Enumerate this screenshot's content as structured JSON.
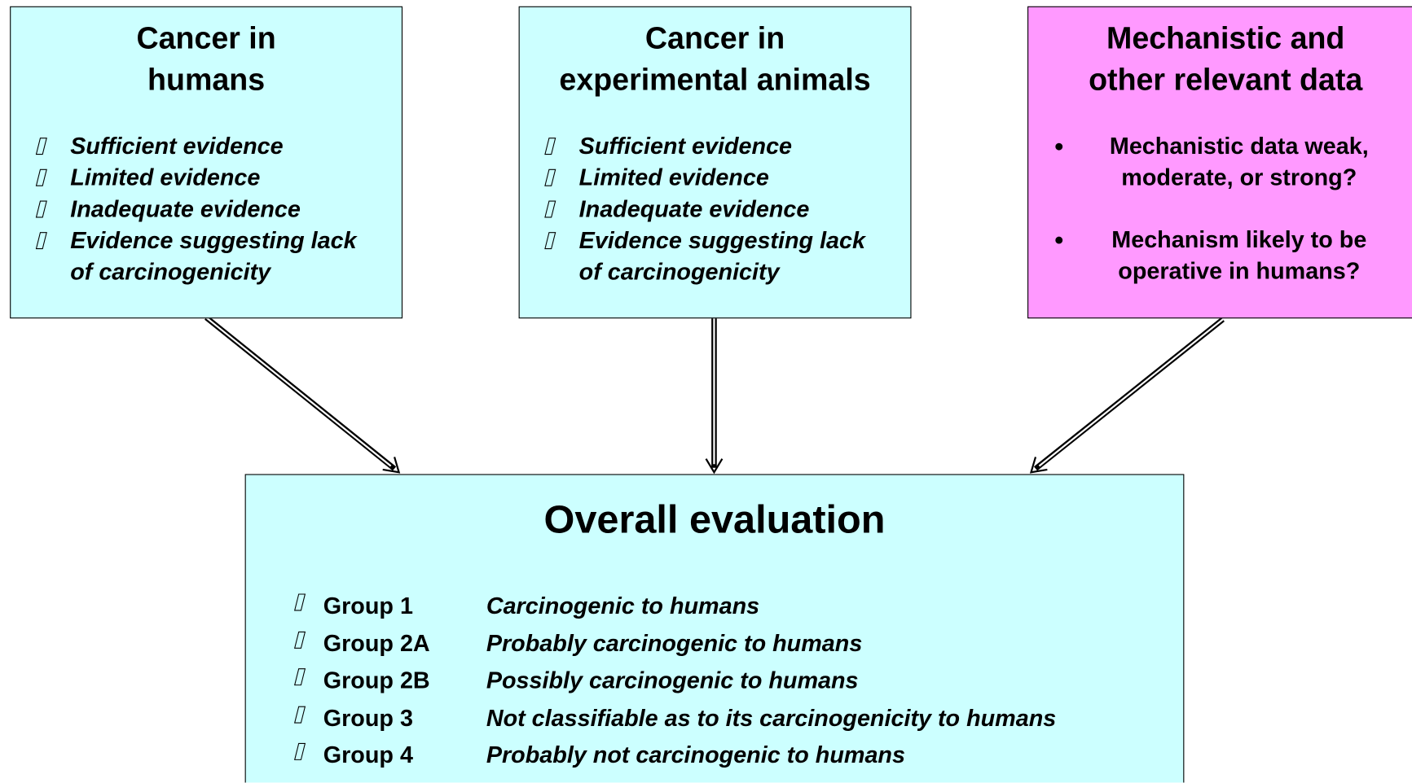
{
  "nodes": [
    {
      "title": "Cancer in\nhumans",
      "items": [
        "Sufficient evidence",
        "Limited evidence",
        "Inadequate evidence",
        "Evidence suggesting lack\nof carcinogenicity"
      ]
    },
    {
      "title": "Cancer in\nexperimental animals",
      "items": [
        "Sufficient evidence",
        "Limited evidence",
        "Inadequate evidence",
        "Evidence suggesting lack\nof carcinogenicity"
      ]
    },
    {
      "title": "Mechanistic and\nother relevant data",
      "items": [
        "Mechanistic data weak,\nmoderate, or strong?",
        "Mechanism likely to be\noperative in humans?"
      ]
    }
  ],
  "overall": {
    "title": "Overall evaluation",
    "groups": [
      {
        "group": "Group 1",
        "description": "Carcinogenic to humans"
      },
      {
        "group": "Group 2A",
        "description": "Probably carcinogenic to humans"
      },
      {
        "group": "Group 2B",
        "description": "Possibly carcinogenic to humans"
      },
      {
        "group": "Group 3",
        "description": "Not classifiable as to its carcinogenicity to humans"
      },
      {
        "group": "Group 4",
        "description": "Probably not carcinogenic to humans"
      }
    ]
  }
}
